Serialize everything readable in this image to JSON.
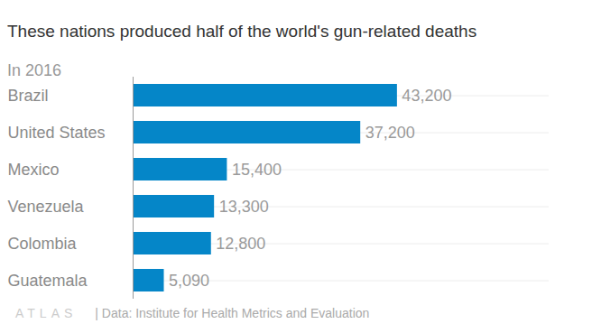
{
  "chart_data": {
    "type": "bar",
    "orientation": "horizontal",
    "title": "These nations produced half of the world's gun-related deaths",
    "subtitle": "In 2016",
    "categories": [
      "Brazil",
      "United States",
      "Mexico",
      "Venezuela",
      "Colombia",
      "Guatemala"
    ],
    "values": [
      43200,
      37200,
      15400,
      13300,
      12800,
      5090
    ],
    "value_labels": [
      "43,200",
      "37,200",
      "15,400",
      "13,300",
      "12,800",
      "5,090"
    ],
    "data_labels": true,
    "color": "#0586c8",
    "xlim": [
      0,
      68000
    ],
    "tick_labels": "y",
    "grid": true,
    "logo": "ATLAS",
    "caption": "| Data: Institute for Health Metrics and Evaluation"
  }
}
